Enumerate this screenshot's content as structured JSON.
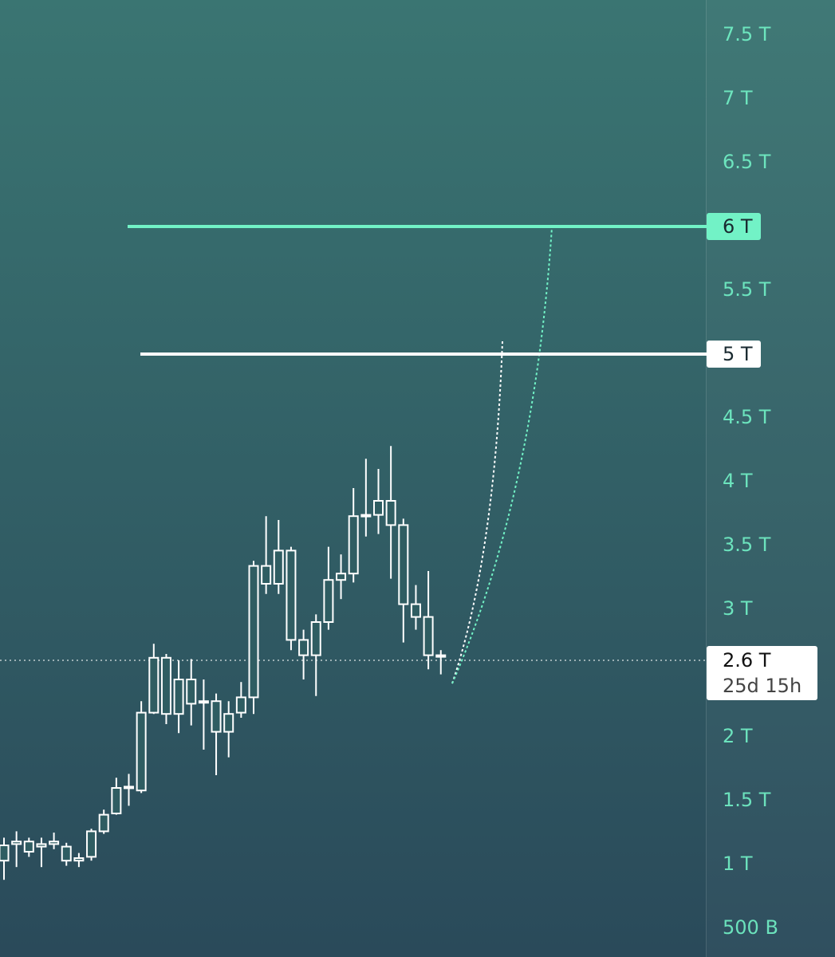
{
  "chart_data": {
    "type": "candlestick",
    "ylim": [
      0.275,
      7.775
    ],
    "yticks": [
      {
        "value": 7.5,
        "label": "7.5 T"
      },
      {
        "value": 7,
        "label": "7 T"
      },
      {
        "value": 6.5,
        "label": "6.5 T"
      },
      {
        "value": 5.5,
        "label": "5.5 T"
      },
      {
        "value": 4.5,
        "label": "4.5 T"
      },
      {
        "value": 4,
        "label": "4 T"
      },
      {
        "value": 3.5,
        "label": "3.5 T"
      },
      {
        "value": 3,
        "label": "3 T"
      },
      {
        "value": 2,
        "label": "2 T"
      },
      {
        "value": 1.5,
        "label": "1.5 T"
      },
      {
        "value": 1,
        "label": "1 T"
      },
      {
        "value": 0.5,
        "label": "500 B"
      }
    ],
    "color": "#ffffff",
    "open": [
      1.03,
      1.16,
      1.1,
      1.14,
      1.16,
      1.14,
      1.03,
      1.06,
      1.26,
      1.4,
      1.6,
      1.58,
      2.19,
      2.62,
      2.18,
      2.45,
      2.28,
      2.28,
      2.04,
      2.19,
      2.31,
      3.34,
      3.2,
      3.46,
      2.76,
      2.64,
      2.9,
      3.23,
      3.28,
      3.73,
      3.74,
      3.85,
      3.66,
      3.04,
      2.94,
      2.64
    ],
    "high": [
      1.21,
      1.26,
      1.21,
      1.21,
      1.25,
      1.17,
      1.09,
      1.28,
      1.43,
      1.68,
      1.71,
      2.28,
      2.73,
      2.65,
      2.6,
      2.61,
      2.45,
      2.34,
      2.28,
      2.43,
      3.38,
      3.73,
      3.7,
      3.49,
      2.84,
      2.96,
      3.49,
      3.43,
      3.95,
      4.18,
      4.1,
      4.28,
      3.71,
      3.19,
      3.3,
      2.68
    ],
    "low": [
      0.88,
      0.98,
      1.06,
      0.98,
      1.12,
      0.99,
      0.98,
      1.03,
      1.24,
      1.39,
      1.46,
      1.56,
      2.18,
      2.1,
      2.03,
      2.09,
      1.9,
      1.7,
      1.84,
      2.15,
      2.18,
      3.12,
      3.12,
      2.68,
      2.45,
      2.32,
      2.84,
      3.08,
      3.21,
      3.57,
      3.59,
      3.24,
      2.74,
      2.84,
      2.53,
      2.49
    ],
    "close": [
      1.15,
      1.18,
      1.18,
      1.16,
      1.18,
      1.03,
      1.05,
      1.26,
      1.39,
      1.6,
      1.61,
      2.19,
      2.62,
      2.18,
      2.45,
      2.26,
      2.27,
      2.04,
      2.18,
      2.31,
      3.34,
      3.2,
      3.46,
      2.76,
      2.64,
      2.9,
      3.23,
      3.28,
      3.73,
      3.74,
      3.85,
      3.66,
      3.04,
      2.94,
      2.64,
      2.63
    ],
    "levels": [
      {
        "value": 6,
        "label": "6 T",
        "color": "#72f2c6"
      },
      {
        "value": 5,
        "label": "5 T",
        "color": "#ffffff"
      }
    ],
    "current": {
      "value": 2.6,
      "label": "2.6 T",
      "countdown": "25d 15h"
    }
  }
}
